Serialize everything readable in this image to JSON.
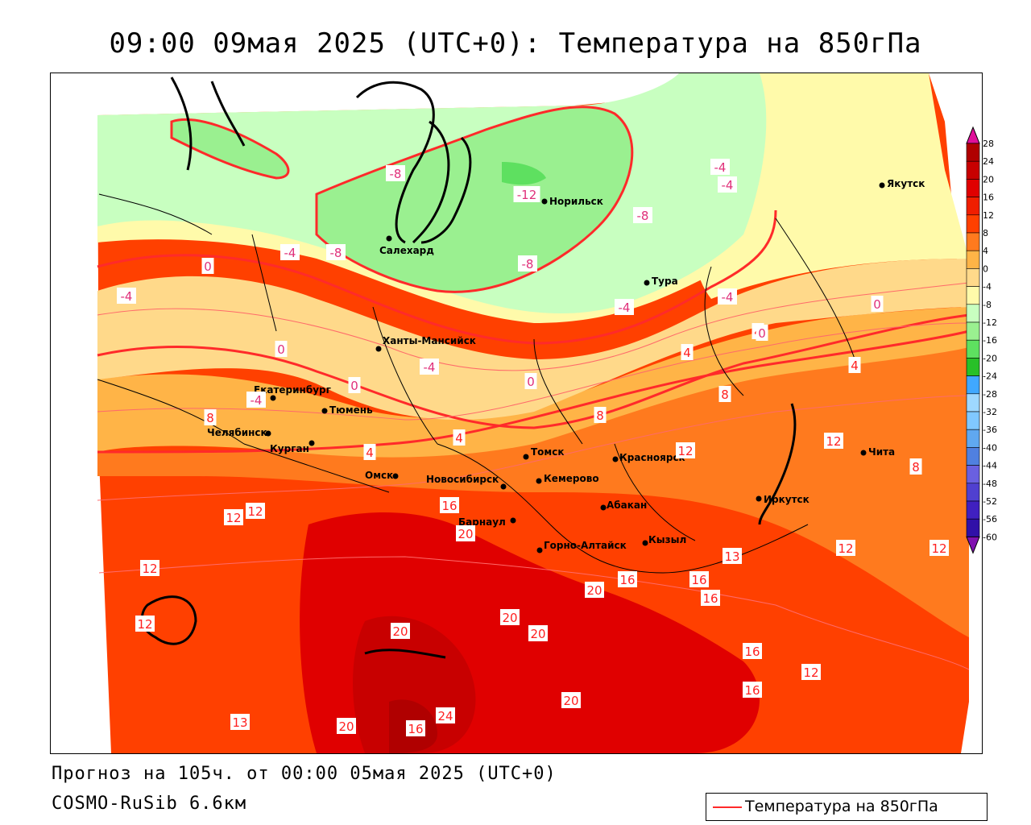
{
  "title": "09:00 09мая 2025 (UTC+0): Температура на 850гПа",
  "footer": {
    "forecast": "Прогноз на 105ч. от 00:00 05мая 2025 (UTC+0)",
    "model": "COSMO-RuSib 6.6км"
  },
  "legend": {
    "label": "Температура на 850гПа",
    "color": "#ff2a2a"
  },
  "colorbar": {
    "levels": [
      "28",
      "24",
      "20",
      "16",
      "12",
      "8",
      "4",
      "0",
      "-4",
      "-8",
      "-12",
      "-16",
      "-20",
      "-24",
      "-28",
      "-32",
      "-36",
      "-40",
      "-44",
      "-48",
      "-52",
      "-56",
      "-60"
    ],
    "colors": [
      "#b00000",
      "#c80000",
      "#e00000",
      "#f01e00",
      "#ff4000",
      "#ff7a1e",
      "#ffb447",
      "#ffd98a",
      "#fffaaa",
      "#c8ffc0",
      "#9af090",
      "#5ee060",
      "#28c028",
      "#40a8ff",
      "#9ed8ff",
      "#80c8ff",
      "#60a8f0",
      "#5080e0",
      "#6a60e0",
      "#5040d0",
      "#4020c0",
      "#3010a8",
      "#200090"
    ],
    "top_arrow_color": "#e0109a",
    "bottom_arrow_color": "#8010b0"
  },
  "cities": [
    {
      "name": "Якутск"
    },
    {
      "name": "Норильск"
    },
    {
      "name": "Салехард"
    },
    {
      "name": "Тура"
    },
    {
      "name": "Ханты-Мансийск"
    },
    {
      "name": "Екатеринбург"
    },
    {
      "name": "Тюмень"
    },
    {
      "name": "Челябинск"
    },
    {
      "name": "Курган"
    },
    {
      "name": "Томск"
    },
    {
      "name": "Красноярск"
    },
    {
      "name": "Омск"
    },
    {
      "name": "Новосибирск"
    },
    {
      "name": "Кемерово"
    },
    {
      "name": "Абакан"
    },
    {
      "name": "Иркутск"
    },
    {
      "name": "Чита"
    },
    {
      "name": "Барнаул"
    },
    {
      "name": "Горно-Алтайск"
    },
    {
      "name": "Кызыл"
    }
  ],
  "contour_labels": [
    "-8",
    "-12",
    "-8",
    "-4",
    "-8",
    "-4",
    "-4",
    "-8",
    "-4",
    "-4",
    "-4",
    "0",
    "0",
    "0",
    "-4",
    "-4",
    "0",
    "4",
    "0",
    "4",
    "0",
    "4",
    "8",
    "8",
    "8",
    "4",
    "12",
    "4",
    "8",
    "12",
    "12",
    "12",
    "13",
    "16",
    "12",
    "20",
    "12",
    "20",
    "20",
    "24",
    "20",
    "20",
    "20",
    "16",
    "16",
    "16",
    "16",
    "20",
    "13",
    "16",
    "12",
    "16",
    "12",
    "12"
  ]
}
